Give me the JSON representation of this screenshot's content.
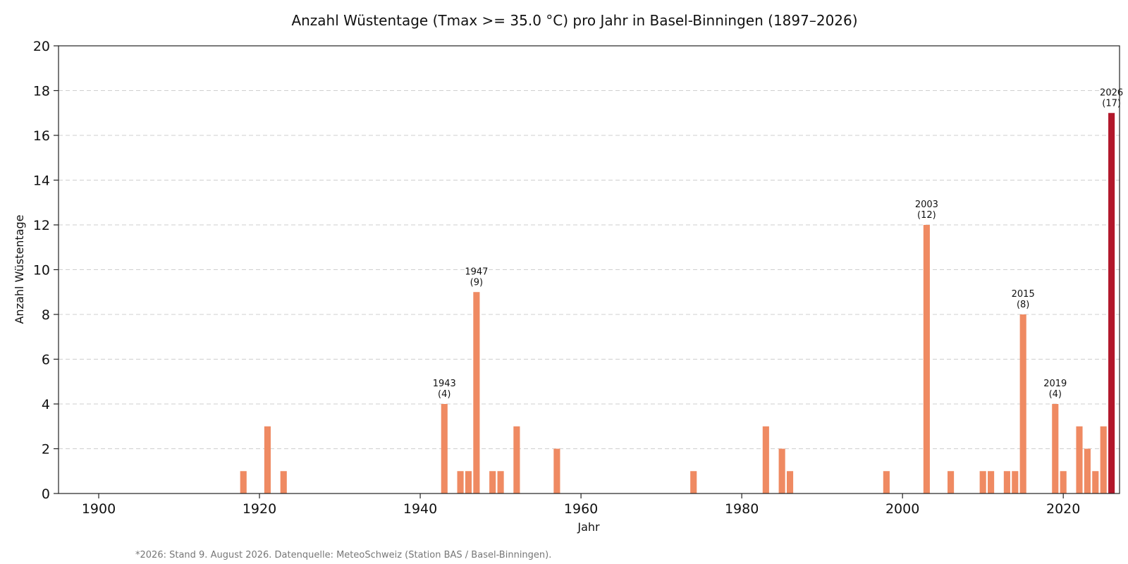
{
  "chart_data": {
    "type": "bar",
    "title": "Anzahl Wüstentage (Tmax >= 35.0 °C) pro Jahr in Basel-Binningen (1897–2026)",
    "xlabel": "Jahr",
    "ylabel": "Anzahl Wüstentage",
    "xlim": [
      1895,
      2027
    ],
    "ylim": [
      0,
      20
    ],
    "xticks": [
      1900,
      1920,
      1940,
      1960,
      1980,
      2000,
      2020
    ],
    "yticks": [
      0,
      2,
      4,
      6,
      8,
      10,
      12,
      14,
      16,
      18,
      20
    ],
    "grid": "horizontal",
    "footnote": "*2026: Stand 9. August 2026. Datenquelle: MeteoSchweiz (Station BAS / Basel-Binningen).",
    "colors": {
      "bar": "#ef8a62",
      "highlight": "#b2182b",
      "axis": "#222222"
    },
    "series": [
      {
        "x": [
          1918,
          1921,
          1923,
          1943,
          1945,
          1946,
          1947,
          1949,
          1950,
          1952,
          1957,
          1974,
          1983,
          1985,
          1986,
          1998,
          2003,
          2006,
          2010,
          2011,
          2013,
          2014,
          2015,
          2019,
          2020,
          2022,
          2023,
          2024,
          2025,
          2026
        ],
        "values": [
          1,
          3,
          1,
          4,
          1,
          1,
          9,
          1,
          1,
          3,
          2,
          1,
          3,
          2,
          1,
          1,
          12,
          1,
          1,
          1,
          1,
          1,
          8,
          4,
          1,
          3,
          2,
          1,
          3,
          17
        ]
      }
    ],
    "highlight_year": 2026,
    "annotations": [
      {
        "x": 1943,
        "y": 4,
        "year": "1943",
        "value": "(4)"
      },
      {
        "x": 1947,
        "y": 9,
        "year": "1947",
        "value": "(9)"
      },
      {
        "x": 2003,
        "y": 12,
        "year": "2003",
        "value": "(12)"
      },
      {
        "x": 2015,
        "y": 8,
        "year": "2015",
        "value": "(8)"
      },
      {
        "x": 2019,
        "y": 4,
        "year": "2019",
        "value": "(4)"
      },
      {
        "x": 2026,
        "y": 17,
        "year": "2026",
        "value": "(17)"
      }
    ]
  }
}
